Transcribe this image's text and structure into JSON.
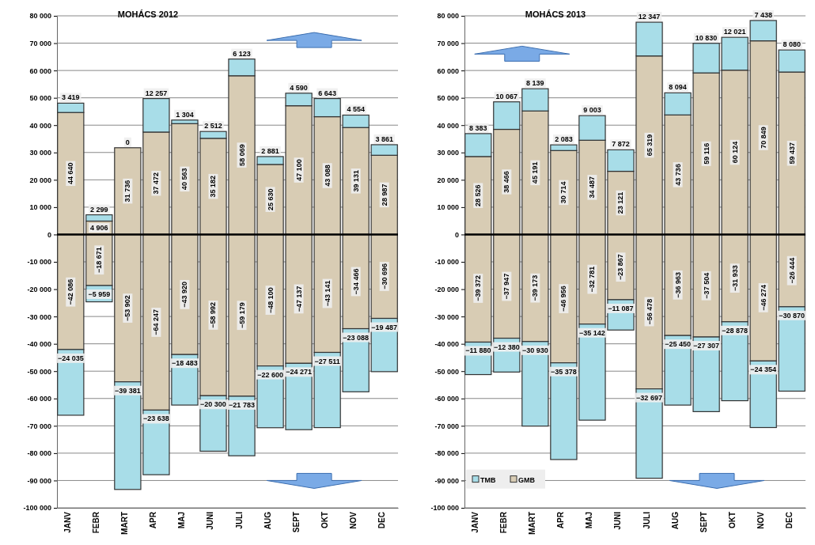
{
  "chart_data": [
    {
      "type": "bar",
      "title": "MOHÁCS 2012",
      "stacked": true,
      "data_labels": true,
      "grid": "y",
      "legend": false,
      "categories": [
        "JANV",
        "FEBR",
        "MART",
        "APR",
        "MAJ",
        "JUNI",
        "JULI",
        "AUG",
        "SEPT",
        "OKT",
        "NOV",
        "DEC"
      ],
      "ylim": [
        -100000,
        80000
      ],
      "yticks": [
        {
          "value": -100000,
          "label": "-100 000"
        },
        {
          "value": -90000,
          "label": "-90 000"
        },
        {
          "value": -80000,
          "label": "-80 000"
        },
        {
          "value": -70000,
          "label": "-70 000"
        },
        {
          "value": -60000,
          "label": "-60 000"
        },
        {
          "value": -50000,
          "label": "-50 000"
        },
        {
          "value": -40000,
          "label": "-40 000"
        },
        {
          "value": -30000,
          "label": "-30 000"
        },
        {
          "value": -20000,
          "label": "-20 000"
        },
        {
          "value": -10000,
          "label": "-10 000"
        },
        {
          "value": 0,
          "label": "0"
        },
        {
          "value": 10000,
          "label": "10 000"
        },
        {
          "value": 20000,
          "label": "20 000"
        },
        {
          "value": 30000,
          "label": "30 000"
        },
        {
          "value": 40000,
          "label": "40 000"
        },
        {
          "value": 50000,
          "label": "50 000"
        },
        {
          "value": 60000,
          "label": "60 000"
        },
        {
          "value": 70000,
          "label": "70 000"
        },
        {
          "value": 80000,
          "label": "80 000"
        }
      ],
      "series": [
        {
          "color": "#d8ccb4",
          "values": [
            44640,
            4906,
            31736,
            37472,
            40563,
            35182,
            58069,
            25630,
            47100,
            43088,
            39131,
            28987
          ]
        },
        {
          "color": "#a8dde8",
          "values": [
            3419,
            2299,
            0,
            12257,
            1304,
            2512,
            6123,
            2881,
            4590,
            6643,
            4554,
            3861
          ]
        },
        {
          "color": "#d8ccb4",
          "values": [
            -42086,
            -18671,
            -53902,
            -64247,
            -43920,
            -58992,
            -59179,
            -48100,
            -47137,
            -43141,
            -34466,
            -30696
          ]
        },
        {
          "color": "#a8dde8",
          "values": [
            -24035,
            -5959,
            -39381,
            -23638,
            -18483,
            -20300,
            -21783,
            -22600,
            -24271,
            -27511,
            -23088,
            -19487
          ]
        }
      ]
    },
    {
      "type": "bar",
      "title": "MOHÁCS 2013",
      "stacked": true,
      "data_labels": true,
      "grid": "y",
      "legend": "bottom left",
      "categories": [
        "JANV",
        "FEBR",
        "MART",
        "APR",
        "MAJ",
        "JUNI",
        "JULI",
        "AUG",
        "SEPT",
        "OKT",
        "NOV",
        "DEC"
      ],
      "ylim": [
        -100000,
        80000
      ],
      "yticks": [
        {
          "value": -100000,
          "label": "-100 000"
        },
        {
          "value": -90000,
          "label": "-90 000"
        },
        {
          "value": -80000,
          "label": "-80 000"
        },
        {
          "value": -70000,
          "label": "-70 000"
        },
        {
          "value": -60000,
          "label": "-60 000"
        },
        {
          "value": -50000,
          "label": "-50 000"
        },
        {
          "value": -40000,
          "label": "-40 000"
        },
        {
          "value": -30000,
          "label": "-30 000"
        },
        {
          "value": -20000,
          "label": "-20 000"
        },
        {
          "value": -10000,
          "label": "-10 000"
        },
        {
          "value": 0,
          "label": "0"
        },
        {
          "value": 10000,
          "label": "10 000"
        },
        {
          "value": 20000,
          "label": "20 000"
        },
        {
          "value": 30000,
          "label": "30 000"
        },
        {
          "value": 40000,
          "label": "40 000"
        },
        {
          "value": 50000,
          "label": "50 000"
        },
        {
          "value": 60000,
          "label": "60 000"
        },
        {
          "value": 70000,
          "label": "70 000"
        },
        {
          "value": 80000,
          "label": "80 000"
        }
      ],
      "series": [
        {
          "name": "GMB",
          "color": "#d8ccb4",
          "values": [
            28526,
            38466,
            45191,
            30714,
            34487,
            23121,
            65319,
            43736,
            59116,
            60124,
            70849,
            59437
          ]
        },
        {
          "name": "TMB",
          "color": "#a8dde8",
          "values": [
            8383,
            10067,
            8139,
            2083,
            9003,
            7872,
            12347,
            8094,
            10830,
            12021,
            7438,
            8080
          ]
        },
        {
          "color": "#d8ccb4",
          "values": [
            -39372,
            -37947,
            -39173,
            -46956,
            -32781,
            -23867,
            -56478,
            -36963,
            -37504,
            -31933,
            -46274,
            -26444
          ]
        },
        {
          "color": "#a8dde8",
          "values": [
            -11880,
            -12380,
            -30930,
            -35378,
            -35142,
            -11087,
            -32697,
            -25450,
            -27307,
            -28878,
            -24354,
            -30870
          ]
        }
      ]
    }
  ]
}
